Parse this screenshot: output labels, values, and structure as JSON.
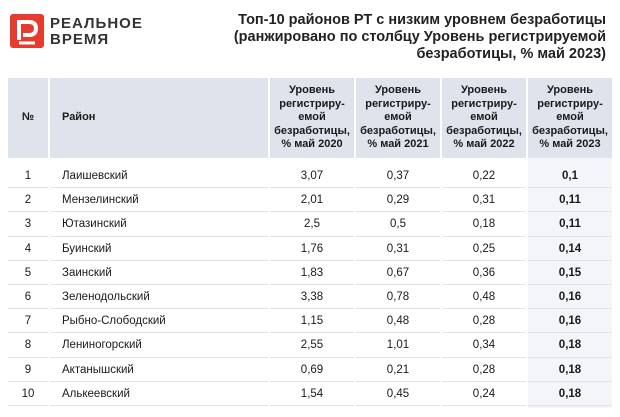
{
  "brand": {
    "line1": "РЕАЛЬНОЕ",
    "line2": "ВРЕМЯ"
  },
  "title": {
    "line1": "Топ-10 районов РТ с низким уровнем безработицы",
    "line2": "(ранжировано по столбцу Уровень регистрируемой",
    "line3": "безработицы, %  май 2023)"
  },
  "table": {
    "headers": {
      "num": "№",
      "district": "Район",
      "c1": [
        "Уровень",
        "регистриру-",
        "емой",
        "безработицы,",
        "%  май 2020"
      ],
      "c2": [
        "Уровень",
        "регистриру-",
        "емой",
        "безработицы,",
        "%  май 2021"
      ],
      "c3": [
        "Уровень",
        "регистриру-",
        "емой",
        "безработицы,",
        "%  май 2022"
      ],
      "c4": [
        "Уровень",
        "регистриру-",
        "емой",
        "безработицы,",
        "%  май 2023"
      ]
    },
    "rows": [
      {
        "num": "1",
        "district": "Лаишевский",
        "v2020": "3,07",
        "v2021": "0,37",
        "v2022": "0,22",
        "v2023": "0,1"
      },
      {
        "num": "2",
        "district": "Мензелинский",
        "v2020": "2,01",
        "v2021": "0,29",
        "v2022": "0,31",
        "v2023": "0,11"
      },
      {
        "num": "3",
        "district": "Ютазинский",
        "v2020": "2,5",
        "v2021": "0,5",
        "v2022": "0,18",
        "v2023": "0,11"
      },
      {
        "num": "4",
        "district": "Буинский",
        "v2020": "1,76",
        "v2021": "0,31",
        "v2022": "0,25",
        "v2023": "0,14"
      },
      {
        "num": "5",
        "district": "Заинский",
        "v2020": "1,83",
        "v2021": "0,67",
        "v2022": "0,36",
        "v2023": "0,15"
      },
      {
        "num": "6",
        "district": "Зеленодольский",
        "v2020": "3,38",
        "v2021": "0,78",
        "v2022": "0,48",
        "v2023": "0,16"
      },
      {
        "num": "7",
        "district": "Рыбно-Слободский",
        "v2020": "1,15",
        "v2021": "0,48",
        "v2022": "0,28",
        "v2023": "0,16"
      },
      {
        "num": "8",
        "district": "Лениногорский",
        "v2020": "2,55",
        "v2021": "1,01",
        "v2022": "0,34",
        "v2023": "0,18"
      },
      {
        "num": "9",
        "district": "Актанышский",
        "v2020": "0,69",
        "v2021": "0,21",
        "v2022": "0,28",
        "v2023": "0,18"
      },
      {
        "num": "10",
        "district": "Алькеевский",
        "v2020": "1,54",
        "v2021": "0,45",
        "v2022": "0,24",
        "v2023": "0,18"
      }
    ]
  },
  "colors": {
    "header_bg": "#dfe4ec",
    "logo_red": "#e63b2e",
    "text": "#1a1a1a"
  }
}
